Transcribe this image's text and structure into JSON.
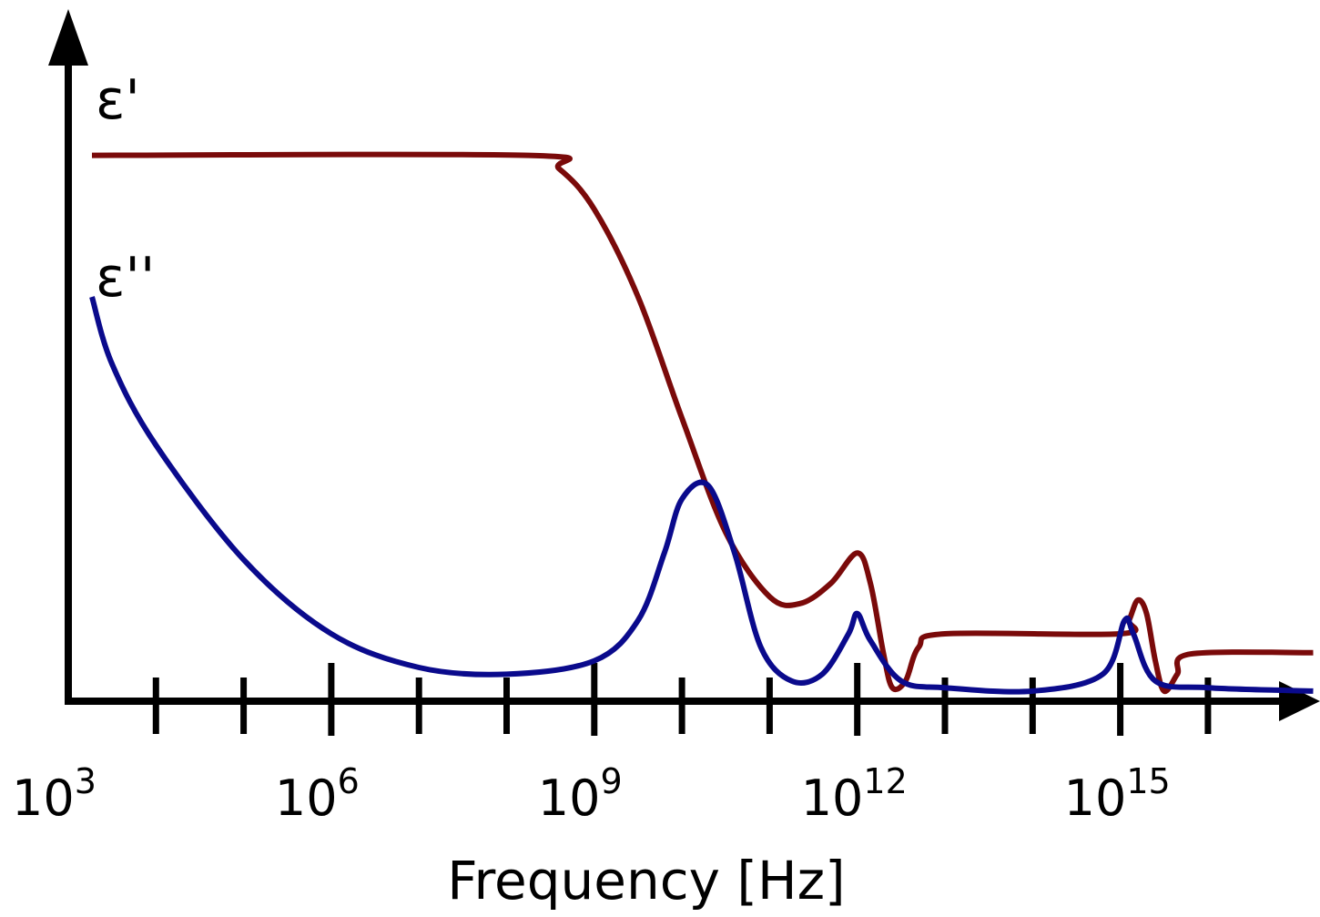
{
  "chart_data": {
    "type": "line",
    "xlabel": "Frequency [Hz]",
    "x_scale": "log10",
    "xlim_exponent": [
      3,
      17.3
    ],
    "x_tick_labels": [
      {
        "base": "10",
        "exp": "3",
        "exponent": 3
      },
      {
        "base": "10",
        "exp": "6",
        "exponent": 6
      },
      {
        "base": "10",
        "exp": "9",
        "exponent": 9
      },
      {
        "base": "10",
        "exp": "12",
        "exponent": 12
      },
      {
        "base": "10",
        "exp": "15",
        "exponent": 15
      }
    ],
    "x_major_exponents": [
      6,
      9,
      12,
      15
    ],
    "x_minor_exponents": [
      4,
      5,
      7,
      8,
      10,
      11,
      13,
      14,
      16
    ],
    "y_ticks": false,
    "ylim": [
      0,
      1
    ],
    "series": [
      {
        "name": "ε'",
        "color": "#7a0a0a",
        "points": [
          [
            3.27,
            0.81
          ],
          [
            8.25,
            0.81
          ],
          [
            8.6,
            0.79
          ],
          [
            9.0,
            0.73
          ],
          [
            9.5,
            0.6
          ],
          [
            10.0,
            0.42
          ],
          [
            10.5,
            0.25
          ],
          [
            11.0,
            0.155
          ],
          [
            11.35,
            0.145
          ],
          [
            11.7,
            0.175
          ],
          [
            12.0,
            0.22
          ],
          [
            12.15,
            0.175
          ],
          [
            12.3,
            0.07
          ],
          [
            12.4,
            0.02
          ],
          [
            12.55,
            0.03
          ],
          [
            12.7,
            0.08
          ],
          [
            13.0,
            0.1
          ],
          [
            15.0,
            0.1
          ],
          [
            15.1,
            0.12
          ],
          [
            15.2,
            0.15
          ],
          [
            15.3,
            0.13
          ],
          [
            15.4,
            0.06
          ],
          [
            15.5,
            0.015
          ],
          [
            15.65,
            0.04
          ],
          [
            15.8,
            0.07
          ],
          [
            17.2,
            0.072
          ]
        ]
      },
      {
        "name": "ε''",
        "color": "#0a0a8c",
        "points": [
          [
            3.27,
            0.6
          ],
          [
            3.5,
            0.5
          ],
          [
            4.0,
            0.38
          ],
          [
            5.0,
            0.21
          ],
          [
            6.0,
            0.1
          ],
          [
            7.0,
            0.05
          ],
          [
            8.0,
            0.04
          ],
          [
            9.0,
            0.06
          ],
          [
            9.5,
            0.12
          ],
          [
            9.8,
            0.22
          ],
          [
            10.0,
            0.3
          ],
          [
            10.3,
            0.32
          ],
          [
            10.6,
            0.22
          ],
          [
            10.9,
            0.08
          ],
          [
            11.25,
            0.03
          ],
          [
            11.6,
            0.04
          ],
          [
            11.9,
            0.1
          ],
          [
            12.0,
            0.13
          ],
          [
            12.15,
            0.09
          ],
          [
            12.5,
            0.03
          ],
          [
            13.0,
            0.02
          ],
          [
            14.0,
            0.015
          ],
          [
            14.8,
            0.04
          ],
          [
            15.05,
            0.12
          ],
          [
            15.15,
            0.1
          ],
          [
            15.4,
            0.03
          ],
          [
            16.0,
            0.02
          ],
          [
            17.2,
            0.015
          ]
        ]
      }
    ]
  }
}
